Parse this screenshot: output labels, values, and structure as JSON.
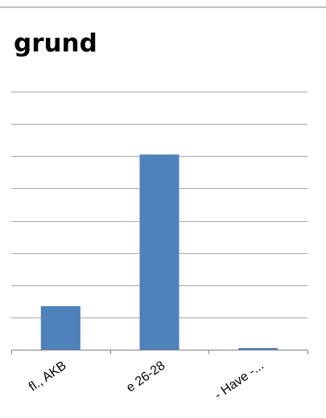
{
  "chart_data": {
    "type": "bar",
    "title": "grund",
    "categories": [
      "fl., AKB",
      "e 26-28",
      "- Have -..."
    ],
    "values": [
      1.35,
      6.05,
      0.05
    ],
    "ylim": [
      0,
      8
    ],
    "ytick_step": 1,
    "grid": true,
    "legend": "none",
    "bar_color": "#4f81bd",
    "xlabel": "",
    "ylabel": ""
  }
}
